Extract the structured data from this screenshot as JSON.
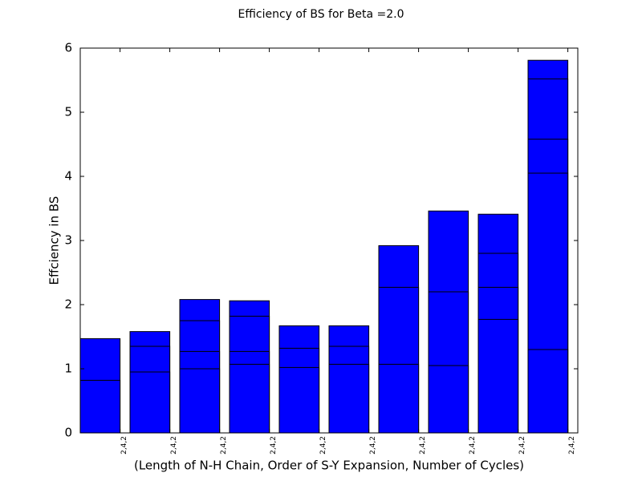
{
  "chart_data": {
    "type": "bar",
    "title": "Efficiency of BS for Beta =2.0",
    "x_label": "(Length of N-H Chain, Order of S-Y Expansion, Number of Cycles)",
    "y_label": "Effciency in BS",
    "categories": [
      "2,4,2",
      "2,4,2",
      "2,4,2",
      "2,4,2",
      "2,4,2",
      "2,4,2",
      "2,4,2",
      "2,4,2",
      "2,4,2",
      "2,4,2"
    ],
    "color": "#0000ff",
    "series": [
      {
        "values": [
          1.47,
          1.58,
          2.08,
          2.06,
          1.67,
          1.67,
          2.92,
          3.46,
          3.41,
          5.81
        ]
      },
      {
        "values": [
          0.82,
          1.35,
          1.75,
          1.82,
          1.32,
          1.35,
          2.27,
          2.2,
          2.8,
          5.52
        ]
      },
      {
        "values": [
          null,
          0.95,
          1.27,
          1.27,
          1.02,
          1.07,
          1.07,
          1.05,
          2.27,
          4.58
        ]
      },
      {
        "values": [
          null,
          null,
          1.0,
          1.07,
          null,
          null,
          null,
          null,
          1.77,
          4.05
        ]
      },
      {
        "values": [
          null,
          null,
          null,
          null,
          null,
          null,
          null,
          null,
          null,
          1.3
        ]
      }
    ],
    "ylim": [
      0,
      6
    ],
    "yticks": [
      0,
      1,
      2,
      3,
      4,
      5,
      6
    ],
    "grid": false
  }
}
